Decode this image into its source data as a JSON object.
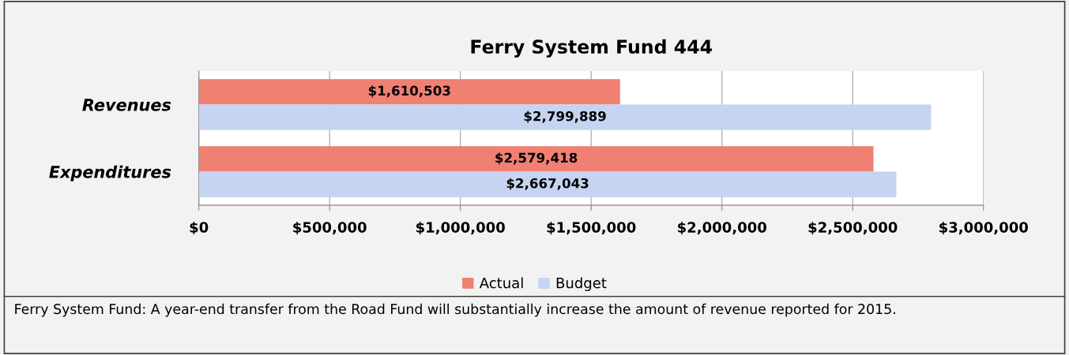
{
  "chart_data": {
    "type": "bar",
    "orientation": "horizontal",
    "title": "Ferry System Fund 444",
    "categories": [
      "Revenues",
      "Expenditures"
    ],
    "series": [
      {
        "name": "Actual",
        "color": "#f08072",
        "values": [
          1610503,
          2579418
        ],
        "value_labels": [
          "$1,610,503",
          "$2,579,418"
        ]
      },
      {
        "name": "Budget",
        "color": "#c6d4f2",
        "values": [
          2799889,
          2667043
        ],
        "value_labels": [
          "$2,799,889",
          "$2,667,043"
        ]
      }
    ],
    "xlim": [
      0,
      3000000
    ],
    "xticks": [
      {
        "value": 0,
        "label": "$0"
      },
      {
        "value": 500000,
        "label": "$500,000"
      },
      {
        "value": 1000000,
        "label": "$1,000,000"
      },
      {
        "value": 1500000,
        "label": "$1,500,000"
      },
      {
        "value": 2000000,
        "label": "$2,000,000"
      },
      {
        "value": 2500000,
        "label": "$2,500,000"
      },
      {
        "value": 3000000,
        "label": "$3,000,000"
      }
    ],
    "grid": "x",
    "legend": "bottom",
    "annotations": [
      "Ferry System Fund: A year-end transfer from the Road Fund will substantially increase the amount of revenue reported for 2015."
    ]
  }
}
